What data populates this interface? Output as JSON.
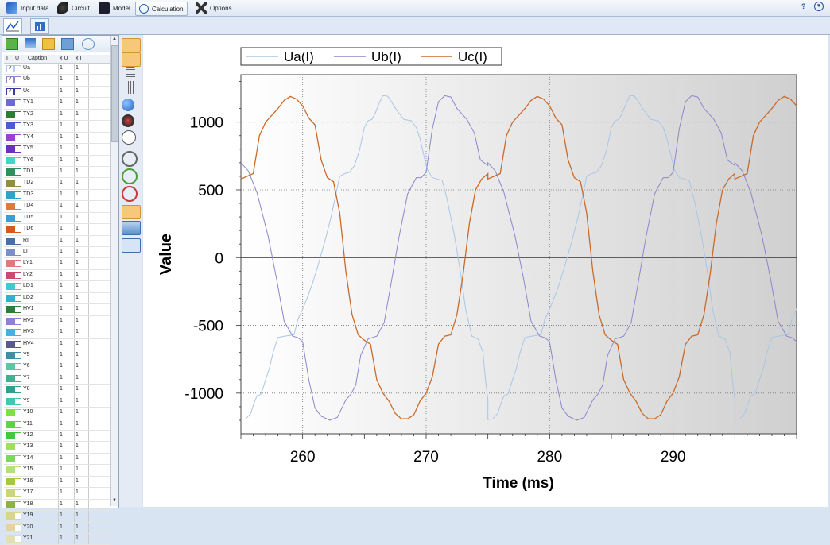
{
  "menubar": {
    "items": [
      {
        "label": "Input data",
        "icon": "input-data-icon"
      },
      {
        "label": "Circuit",
        "icon": "circuit-icon"
      },
      {
        "label": "Model",
        "icon": "model-icon"
      },
      {
        "label": "Calculation",
        "icon": "calculation-icon",
        "active": true
      },
      {
        "label": "Options",
        "icon": "options-icon"
      }
    ],
    "help": "?"
  },
  "grid": {
    "headers": {
      "i": "I",
      "u": "U",
      "caption": "Caption",
      "xu": "x U",
      "xi": "x I"
    },
    "rows": [
      {
        "caption": "Ua",
        "xu": "1",
        "xi": "1",
        "checked": true,
        "color": "#b6c9e6"
      },
      {
        "caption": "Ub",
        "xu": "1",
        "xi": "1",
        "checked": true,
        "color": "#8c88c9"
      },
      {
        "caption": "Uc",
        "xu": "1",
        "xi": "1",
        "checked": true,
        "color": "#3a3a9e"
      },
      {
        "caption": "TY1",
        "xu": "1",
        "xi": "1",
        "checked": false,
        "color": "#6b6bd6"
      },
      {
        "caption": "TY2",
        "xu": "1",
        "xi": "1",
        "checked": false,
        "color": "#2e7d32"
      },
      {
        "caption": "TY3",
        "xu": "1",
        "xi": "1",
        "checked": false,
        "color": "#4c5bd4"
      },
      {
        "caption": "TY4",
        "xu": "1",
        "xi": "1",
        "checked": false,
        "color": "#9b3fd6"
      },
      {
        "caption": "TY5",
        "xu": "1",
        "xi": "1",
        "checked": false,
        "color": "#6a2fc4"
      },
      {
        "caption": "TY6",
        "xu": "1",
        "xi": "1",
        "checked": false,
        "color": "#3fd6c6"
      },
      {
        "caption": "TD1",
        "xu": "1",
        "xi": "1",
        "checked": false,
        "color": "#2f8f5f"
      },
      {
        "caption": "TD2",
        "xu": "1",
        "xi": "1",
        "checked": false,
        "color": "#8f8f3f"
      },
      {
        "caption": "TD3",
        "xu": "1",
        "xi": "1",
        "checked": false,
        "color": "#2fa3c9"
      },
      {
        "caption": "TD4",
        "xu": "1",
        "xi": "1",
        "checked": false,
        "color": "#e07a3a"
      },
      {
        "caption": "TD5",
        "xu": "1",
        "xi": "1",
        "checked": false,
        "color": "#3a9fd6"
      },
      {
        "caption": "TD6",
        "xu": "1",
        "xi": "1",
        "checked": false,
        "color": "#d65a1f"
      },
      {
        "caption": "RI",
        "xu": "1",
        "xi": "1",
        "checked": false,
        "color": "#4a6fa5"
      },
      {
        "caption": "LI",
        "xu": "1",
        "xi": "1",
        "checked": false,
        "color": "#7a8fc9"
      },
      {
        "caption": "LY1",
        "xu": "1",
        "xi": "1",
        "checked": false,
        "color": "#e07a7a"
      },
      {
        "caption": "LY2",
        "xu": "1",
        "xi": "1",
        "checked": false,
        "color": "#c94a6f"
      },
      {
        "caption": "LD1",
        "xu": "1",
        "xi": "1",
        "checked": false,
        "color": "#3fc9d6"
      },
      {
        "caption": "LD2",
        "xu": "1",
        "xi": "1",
        "checked": false,
        "color": "#2fb3c9"
      },
      {
        "caption": "HV1",
        "xu": "1",
        "xi": "1",
        "checked": false,
        "color": "#2e7d3a"
      },
      {
        "caption": "HV2",
        "xu": "1",
        "xi": "1",
        "checked": false,
        "color": "#8f7fd6"
      },
      {
        "caption": "HV3",
        "xu": "1",
        "xi": "1",
        "checked": false,
        "color": "#3fb3e0"
      },
      {
        "caption": "HV4",
        "xu": "1",
        "xi": "1",
        "checked": false,
        "color": "#5a5a8f"
      },
      {
        "caption": "Y5",
        "xu": "1",
        "xi": "1",
        "checked": false,
        "color": "#3f8fa3"
      },
      {
        "caption": "Y6",
        "xu": "1",
        "xi": "1",
        "checked": false,
        "color": "#5ac9a3"
      },
      {
        "caption": "Y7",
        "xu": "1",
        "xi": "1",
        "checked": false,
        "color": "#3fb38f"
      },
      {
        "caption": "Y8",
        "xu": "1",
        "xi": "1",
        "checked": false,
        "color": "#2f9f8f"
      },
      {
        "caption": "Y9",
        "xu": "1",
        "xi": "1",
        "checked": false,
        "color": "#3fc9b3"
      },
      {
        "caption": "Y10",
        "xu": "1",
        "xi": "1",
        "checked": false,
        "color": "#7fe03f"
      },
      {
        "caption": "Y11",
        "xu": "1",
        "xi": "1",
        "checked": false,
        "color": "#5ad63f"
      },
      {
        "caption": "Y12",
        "xu": "1",
        "xi": "1",
        "checked": false,
        "color": "#3fc93f"
      },
      {
        "caption": "Y13",
        "xu": "1",
        "xi": "1",
        "checked": false,
        "color": "#9fe05a"
      },
      {
        "caption": "Y14",
        "xu": "1",
        "xi": "1",
        "checked": false,
        "color": "#7fd65a"
      },
      {
        "caption": "Y15",
        "xu": "1",
        "xi": "1",
        "checked": false,
        "color": "#b3e07f"
      },
      {
        "caption": "Y16",
        "xu": "1",
        "xi": "1",
        "checked": false,
        "color": "#a3c93f"
      },
      {
        "caption": "Y17",
        "xu": "1",
        "xi": "1",
        "checked": false,
        "color": "#c9d67f"
      },
      {
        "caption": "Y18",
        "xu": "1",
        "xi": "1",
        "checked": false,
        "color": "#8fb33f"
      },
      {
        "caption": "Y19",
        "xu": "1",
        "xi": "1",
        "checked": false,
        "color": "#d6d68f"
      },
      {
        "caption": "Y20",
        "xu": "1",
        "xi": "1",
        "checked": false,
        "color": "#e0d6a3"
      },
      {
        "caption": "Y21",
        "xu": "1",
        "xi": "1",
        "checked": false,
        "color": "#e0e0b3"
      }
    ]
  },
  "chart_data": {
    "type": "line",
    "title": "",
    "xlabel": "Time (ms)",
    "ylabel": "Value",
    "xlim": [
      255,
      300
    ],
    "ylim": [
      -1300,
      1350
    ],
    "xticks": [
      260,
      270,
      280,
      290
    ],
    "yticks": [
      -1000,
      -500,
      0,
      500,
      1000
    ],
    "grid": true,
    "legend_position": "top",
    "period_ms": 20,
    "series": [
      {
        "name": "Ua(I)",
        "color": "#a9c6e8",
        "x": [
          255.0,
          255.4,
          255.8,
          256.0,
          256.3,
          256.6,
          256.8,
          257.0,
          257.3,
          257.6,
          258.0,
          258.5,
          259.3,
          259.6,
          260.0,
          260.4,
          260.8,
          261.3,
          261.8,
          262.3,
          262.7,
          263.0,
          263.4,
          263.8,
          264.2,
          264.6,
          265.0,
          265.3,
          265.6,
          265.9,
          266.2,
          266.5,
          266.7,
          266.9,
          267.2,
          267.6,
          268.2,
          268.8,
          269.2,
          269.5,
          269.8,
          270.1,
          270.5,
          270.9,
          271.3,
          271.7,
          272.3,
          272.8,
          273.2,
          273.7,
          274.2,
          274.6,
          274.8,
          275.0
        ],
        "y": [
          -1195,
          -1190,
          -1150,
          -1090,
          -1020,
          -1010,
          -960,
          -900,
          -820,
          -700,
          -590,
          -580,
          -570,
          -460,
          -380,
          -290,
          -190,
          -40,
          120,
          300,
          470,
          600,
          620,
          630,
          680,
          790,
          960,
          1010,
          1020,
          1070,
          1140,
          1195,
          1195,
          1190,
          1150,
          1090,
          1020,
          1010,
          960,
          880,
          760,
          650,
          590,
          580,
          570,
          430,
          160,
          -120,
          -380,
          -580,
          -600,
          -700,
          -900,
          -1050
        ]
      },
      {
        "name": "Ub(I)",
        "color": "#8a86cc",
        "x": [
          255.0,
          255.6,
          256.3,
          257.2,
          257.9,
          258.5,
          259.2,
          259.6,
          260.0,
          260.5,
          261.0,
          261.5,
          262.2,
          262.8,
          263.5,
          263.9,
          264.3,
          264.7,
          265.3,
          266.0,
          266.6,
          267.2,
          267.8,
          268.5,
          269.2,
          269.6,
          270.0,
          270.5,
          271.0,
          271.5,
          272.0,
          272.5,
          273.3,
          273.9,
          274.4,
          275.0
        ],
        "y": [
          700,
          640,
          480,
          160,
          -160,
          -470,
          -580,
          -590,
          -620,
          -900,
          -1110,
          -1170,
          -1200,
          -1180,
          -1050,
          -1010,
          -940,
          -720,
          -600,
          -580,
          -480,
          -170,
          150,
          470,
          590,
          590,
          630,
          950,
          1150,
          1195,
          1185,
          1100,
          1020,
          920,
          720,
          680
        ]
      },
      {
        "name": "Uc(I)",
        "color": "#c96a2a",
        "x": [
          255.0,
          255.5,
          256.0,
          256.5,
          257.0,
          257.5,
          258.0,
          258.5,
          259.0,
          259.5,
          260.0,
          260.5,
          261.0,
          261.5,
          262.0,
          262.5,
          263.0,
          263.5,
          264.0,
          264.5,
          265.0,
          265.5,
          266.0,
          266.5,
          267.0,
          267.5,
          268.0,
          268.5,
          269.0,
          269.5,
          270.0,
          270.5,
          271.0,
          271.5,
          272.0,
          272.5,
          273.0,
          273.5,
          274.0,
          274.5,
          275.0
        ],
        "y": [
          580,
          600,
          620,
          900,
          1000,
          1050,
          1100,
          1160,
          1190,
          1170,
          1120,
          1030,
          980,
          720,
          590,
          560,
          330,
          -100,
          -420,
          -570,
          -610,
          -640,
          -900,
          -1000,
          -1060,
          -1150,
          -1190,
          -1190,
          -1160,
          -1060,
          -1000,
          -880,
          -640,
          -580,
          -570,
          -420,
          -120,
          250,
          500,
          580,
          620
        ]
      }
    ]
  }
}
